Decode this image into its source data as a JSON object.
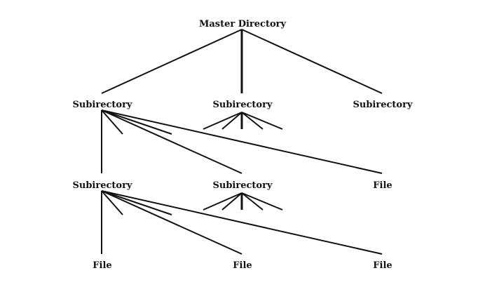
{
  "diagram": {
    "root": {
      "label": "Master Directory"
    },
    "level1": [
      {
        "label": "Subirectory"
      },
      {
        "label": "Subirectory"
      },
      {
        "label": "Subirectory"
      }
    ],
    "level2": [
      {
        "label": "Subirectory"
      },
      {
        "label": "Subirectory"
      },
      {
        "label": "File"
      }
    ],
    "level3": [
      {
        "label": "File"
      },
      {
        "label": "File"
      },
      {
        "label": "File"
      }
    ]
  }
}
